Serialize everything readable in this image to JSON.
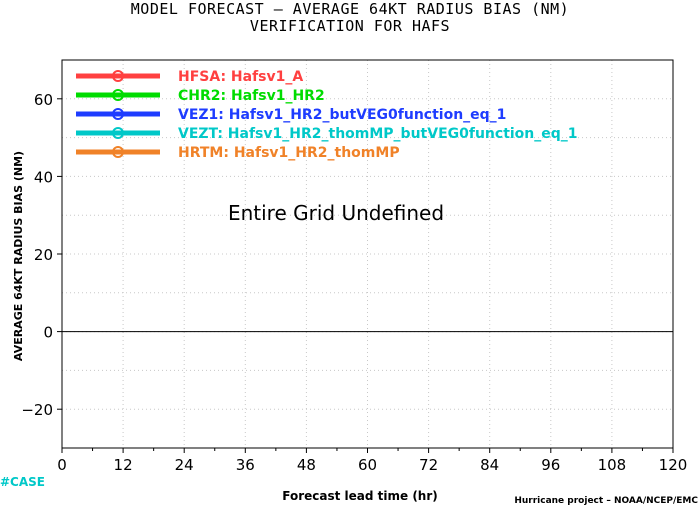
{
  "chart_data": {
    "type": "line",
    "title": "MODEL FORECAST – AVERAGE 64KT RADIUS BIAS (NM)",
    "subtitle": "VERIFICATION FOR HAFS",
    "xlabel": "Forecast lead time (hr)",
    "ylabel": "AVERAGE 64KT RADIUS BIAS (NM)",
    "xlim": [
      0,
      120
    ],
    "ylim": [
      -30,
      70
    ],
    "xticks": [
      0,
      12,
      24,
      36,
      48,
      60,
      72,
      84,
      96,
      108,
      120
    ],
    "yticks": [
      -20,
      0,
      20,
      40,
      60
    ],
    "ytick_labels": [
      "−20",
      "0",
      "20",
      "40",
      "60"
    ],
    "grid": true,
    "zero_line": 0,
    "legend_position": "top-left",
    "annotation": "Entire Grid Undefined",
    "series": [
      {
        "name": "HFSA:  Hafsv1_A",
        "color": "#ff4040",
        "values": []
      },
      {
        "name": "CHR2:  Hafsv1_HR2",
        "color": "#00dc00",
        "values": []
      },
      {
        "name": "VEZ1:  Hafsv1_HR2_butVEG0function_eq_1",
        "color": "#1e3cff",
        "values": []
      },
      {
        "name": "VEZT:  Hafsv1_HR2_thomMP_butVEG0function_eq_1",
        "color": "#00c8c8",
        "values": []
      },
      {
        "name": "HRTM:  Hafsv1_HR2_thomMP",
        "color": "#f08228",
        "values": []
      }
    ]
  },
  "footer": {
    "case_label": "#CASE",
    "credit": "Hurricane project – NOAA/NCEP/EMC"
  }
}
